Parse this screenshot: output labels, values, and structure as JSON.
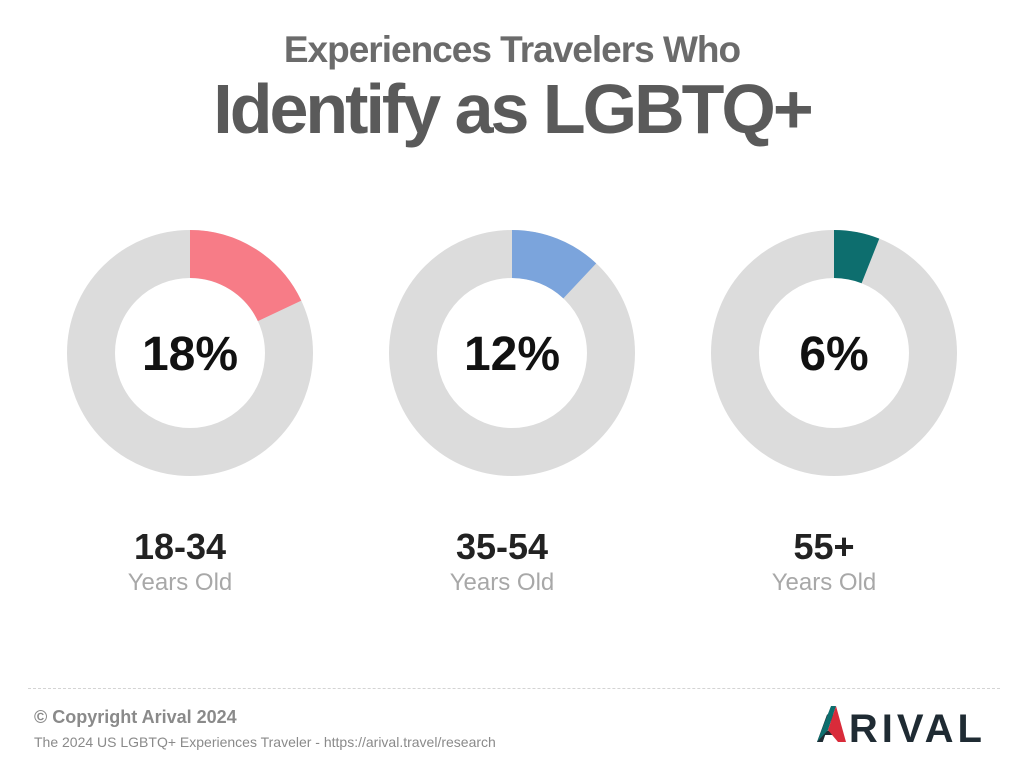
{
  "header": {
    "title_line1": "Experiences Travelers Who",
    "title_line2": "Identify as LGBTQ+"
  },
  "chart_data": {
    "type": "pie",
    "title": "Experiences Travelers Who Identify as LGBTQ+",
    "series": [
      {
        "name": "18-34",
        "sublabel": "Years Old",
        "value": 18,
        "value_label": "18%",
        "color": "#f77c87"
      },
      {
        "name": "35-54",
        "sublabel": "Years Old",
        "value": 12,
        "value_label": "12%",
        "color": "#7ba4dc"
      },
      {
        "name": "55+",
        "sublabel": "Years Old",
        "value": 6,
        "value_label": "6%",
        "color": "#0d6e6e"
      }
    ],
    "remainder_color": "#dcdcdc",
    "legend": "none"
  },
  "footer": {
    "copyright": "© Copyright Arival 2024",
    "source": "The 2024 US LGBTQ+ Experiences Traveler - https://arival.travel/research",
    "logo_text": "ARIVAL",
    "logo_colors": {
      "red": "#d92b3a",
      "teal": "#0d6e6e",
      "dark": "#1f2b33"
    }
  }
}
